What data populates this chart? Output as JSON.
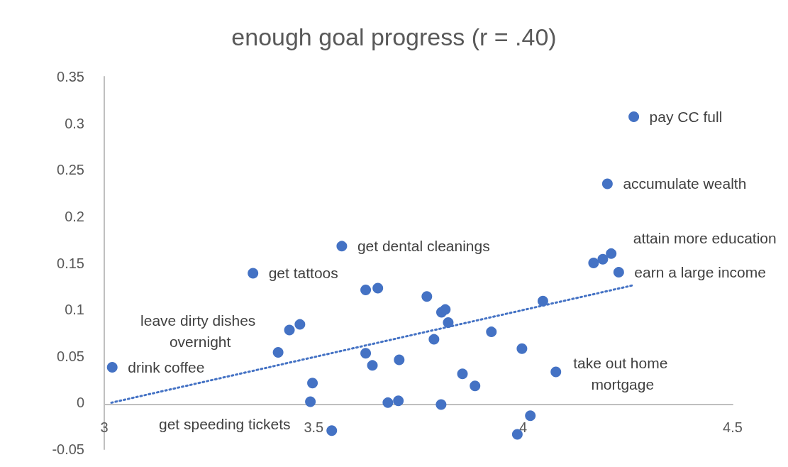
{
  "chart_data": {
    "type": "scatter",
    "title": "enough goal progress (r = .40)",
    "xlim": [
      3,
      4.5
    ],
    "xticks": [
      3,
      3.5,
      4,
      4.5
    ],
    "ylim": [
      -0.05,
      0.35
    ],
    "yticks": [
      -0.05,
      0,
      0.05,
      0.1,
      0.15,
      0.2,
      0.25,
      0.3,
      0.35
    ],
    "marker": "circle",
    "series": [
      {
        "color": "#4472c4",
        "x": [
          3.019,
          3.355,
          3.415,
          3.442,
          3.467,
          3.497,
          3.492,
          3.543,
          3.567,
          3.624,
          3.653,
          3.624,
          3.64,
          3.677,
          3.702,
          3.704,
          3.77,
          3.805,
          3.814,
          3.821,
          3.787,
          3.804,
          3.855,
          3.885,
          3.924,
          3.997,
          3.986,
          4.017,
          4.047,
          4.078,
          4.168,
          4.19,
          4.21,
          4.228,
          4.201,
          4.264
        ],
        "values": [
          0.038,
          0.139,
          0.054,
          0.078,
          0.084,
          0.021,
          0.001,
          -0.03,
          0.168,
          0.121,
          0.123,
          0.053,
          0.04,
          0,
          0.002,
          0.046,
          0.114,
          0.097,
          0.1,
          0.086,
          0.068,
          -0.002,
          0.031,
          0.018,
          0.076,
          0.058,
          -0.034,
          -0.014,
          0.109,
          0.033,
          0.15,
          0.154,
          0.16,
          0.14,
          0.235,
          0.307
        ]
      },
      {
        "type": "line",
        "color": "#4472c4",
        "line_style": "dotted",
        "marker": "none",
        "x": [
          3.017,
          4.262
        ],
        "values": [
          0,
          0.126
        ]
      }
    ],
    "annotations": [
      {
        "text": "drink coffee",
        "x": 3.019,
        "y": 0.038
      },
      {
        "text": "get tattoos",
        "x": 3.355,
        "y": 0.139
      },
      {
        "text": "leave dirty dishes overnight",
        "x": 3.415,
        "y": 0.054
      },
      {
        "text": "get speeding tickets",
        "x": 3.492,
        "y": 0.001
      },
      {
        "text": "get dental cleanings",
        "x": 3.567,
        "y": 0.168
      },
      {
        "text": "take out home mortgage",
        "x": 4.078,
        "y": 0.033
      },
      {
        "text": "attain more education",
        "x": 4.21,
        "y": 0.16
      },
      {
        "text": "earn a large income",
        "x": 4.228,
        "y": 0.14
      },
      {
        "text": "accumulate wealth",
        "x": 4.201,
        "y": 0.235
      },
      {
        "text": "pay CC full",
        "x": 4.264,
        "y": 0.307
      }
    ]
  }
}
